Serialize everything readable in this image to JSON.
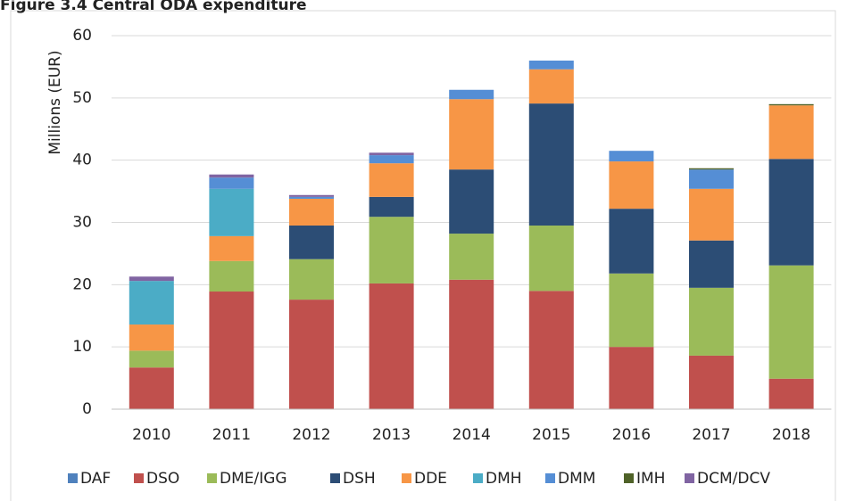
{
  "chart_data": {
    "type": "stacked_bar",
    "title": "Figure 3.4 Central ODA expenditure",
    "y_label": "Millions (EUR)",
    "categories": [
      "2010",
      "2011",
      "2012",
      "2013",
      "2014",
      "2015",
      "2016",
      "2017",
      "2018"
    ],
    "series": [
      {
        "name": "DAF",
        "color": "#4f81bd",
        "values": [
          0,
          0,
          0,
          0,
          0,
          0,
          0,
          0,
          0
        ]
      },
      {
        "name": "DSO",
        "color": "#c0504d",
        "values": [
          6.7,
          18.9,
          17.6,
          20.2,
          20.8,
          19.0,
          10.0,
          8.6,
          4.9
        ]
      },
      {
        "name": "DME/IGG",
        "color": "#9bbb59",
        "values": [
          2.7,
          4.9,
          6.5,
          10.7,
          7.4,
          10.5,
          11.8,
          10.9,
          18.2
        ]
      },
      {
        "name": "DSH",
        "color": "#2c4d75",
        "values": [
          0,
          0,
          5.4,
          3.2,
          10.3,
          19.6,
          10.4,
          7.6,
          17.1
        ]
      },
      {
        "name": "DDE",
        "color": "#f79646",
        "values": [
          4.2,
          4.0,
          4.3,
          5.4,
          11.3,
          5.5,
          7.6,
          8.3,
          8.6
        ]
      },
      {
        "name": "DMH",
        "color": "#4bacc6",
        "values": [
          7.0,
          7.6,
          0,
          0,
          0,
          0,
          0,
          0,
          0
        ]
      },
      {
        "name": "DMM",
        "color": "#558ed5",
        "values": [
          0,
          1.8,
          0.3,
          1.3,
          1.5,
          1.4,
          1.7,
          3.1,
          0
        ]
      },
      {
        "name": "IMH",
        "color": "#4f6228",
        "values": [
          0,
          0,
          0,
          0,
          0,
          0,
          0,
          0.2,
          0.2
        ]
      },
      {
        "name": "DCM/DCV",
        "color": "#8064a2",
        "values": [
          0.7,
          0.5,
          0.3,
          0.4,
          0,
          0,
          0,
          0,
          0
        ]
      }
    ],
    "ylim": [
      0,
      60
    ],
    "yticks": [
      0,
      10,
      20,
      30,
      40,
      50,
      60
    ],
    "grid": true,
    "legend": "bottom"
  }
}
